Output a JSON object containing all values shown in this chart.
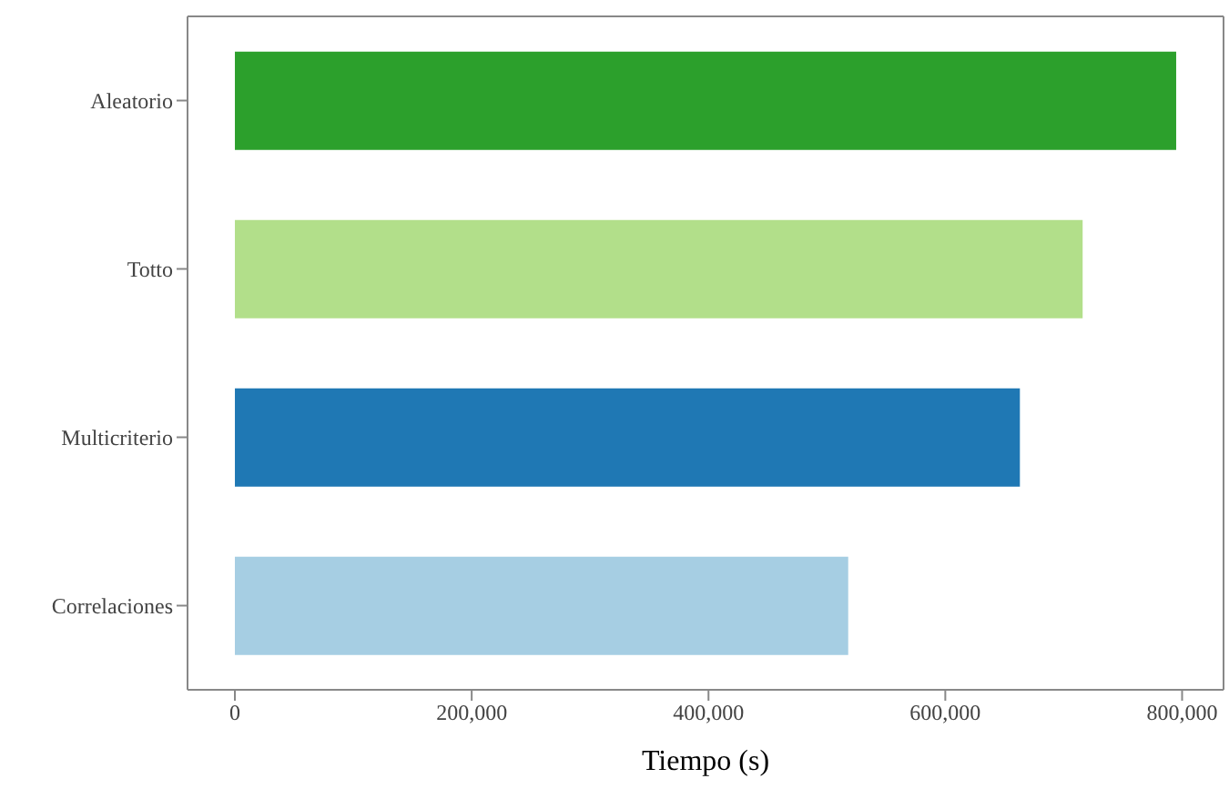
{
  "chart_data": {
    "type": "bar",
    "orientation": "horizontal",
    "xlabel": "Tiempo (s)",
    "categories": [
      "Aleatorio",
      "Totto",
      "Multicriterio",
      "Correlaciones"
    ],
    "values": [
      795000,
      716000,
      663000,
      518000
    ],
    "colors": [
      "#2ca02c",
      "#b2df8a",
      "#1f78b4",
      "#a6cee3"
    ],
    "xlim": [
      -40000,
      835000
    ],
    "xticks": [
      {
        "value": 0,
        "label": "0"
      },
      {
        "value": 200000,
        "label": "200,000"
      },
      {
        "value": 400000,
        "label": "400,000"
      },
      {
        "value": 600000,
        "label": "600,000"
      },
      {
        "value": 800000,
        "label": "800,000"
      }
    ],
    "grid": false
  }
}
